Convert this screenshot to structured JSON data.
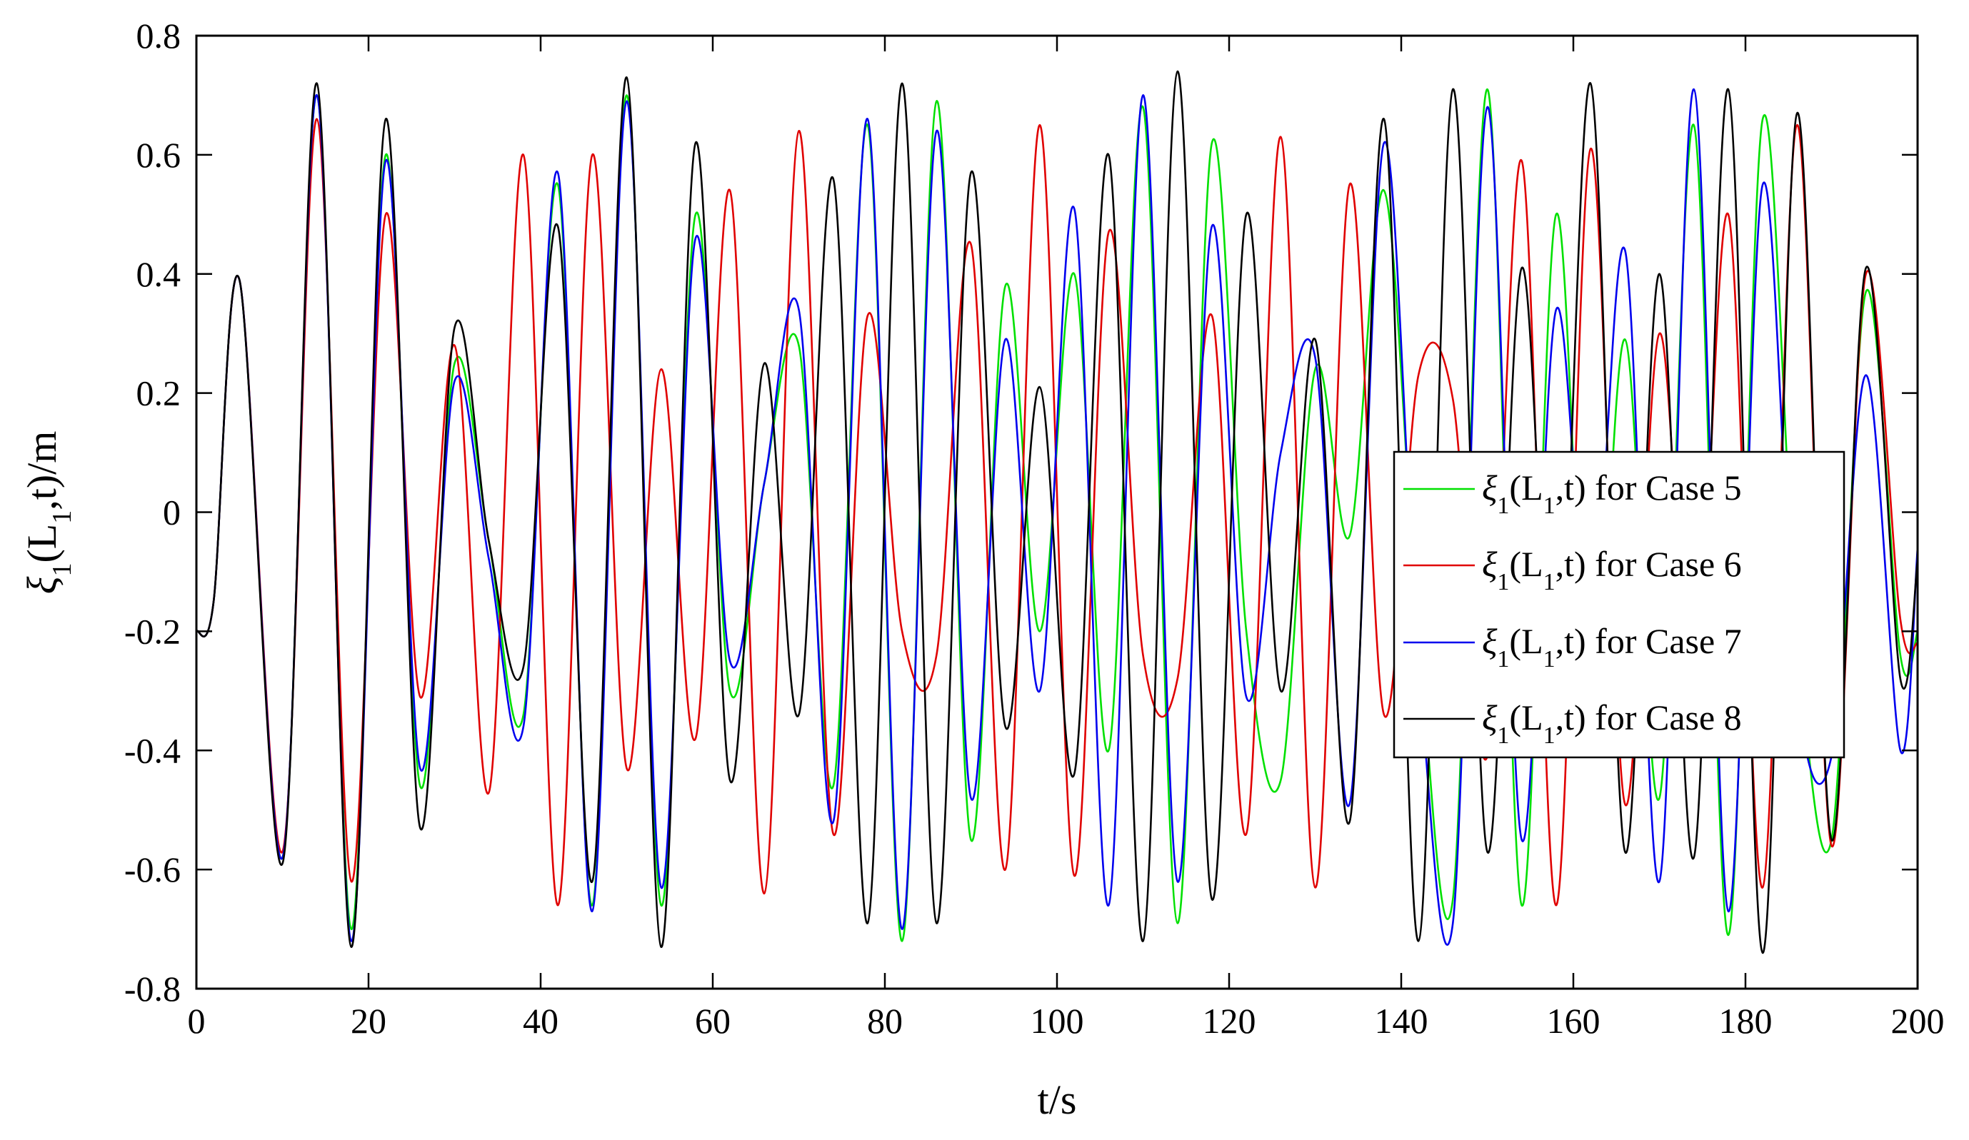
{
  "chart_data": {
    "type": "line",
    "title": "",
    "xlabel": "t/s",
    "ylabel": {
      "main": "ξ",
      "sub1": "1",
      "mid": "(L",
      "sub2": "1",
      "tail": ",t)/m"
    },
    "xlim": [
      0,
      200
    ],
    "ylim": [
      -0.8,
      0.8
    ],
    "x_ticks": [
      "0",
      "20",
      "40",
      "60",
      "80",
      "100",
      "120",
      "140",
      "160",
      "180",
      "200"
    ],
    "y_ticks": [
      "-0.8",
      "-0.6",
      "-0.4",
      "-0.2",
      "0",
      "0.2",
      "0.4",
      "0.6",
      "0.8"
    ],
    "grid": false,
    "legend_placement": "right",
    "x": [
      0,
      2,
      5,
      10,
      14,
      18,
      22,
      26,
      30,
      34,
      38,
      42,
      46,
      50,
      54,
      58,
      62,
      66,
      70,
      74,
      78,
      82,
      86,
      90,
      94,
      98,
      102,
      106,
      110,
      114,
      118,
      122,
      126,
      130,
      134,
      138,
      142,
      146,
      150,
      154,
      158,
      162,
      166,
      170,
      174,
      178,
      182,
      186,
      190,
      194,
      198,
      200
    ],
    "series": [
      {
        "name": "for Case 5",
        "color": "#00e000",
        "values": [
          -0.2,
          -0.15,
          0.39,
          -0.58,
          0.7,
          -0.7,
          0.6,
          -0.46,
          0.25,
          -0.05,
          -0.34,
          0.55,
          -0.66,
          0.7,
          -0.66,
          0.5,
          -0.3,
          0.05,
          0.28,
          -0.46,
          0.65,
          -0.72,
          0.69,
          -0.55,
          0.38,
          -0.2,
          0.4,
          -0.4,
          0.68,
          -0.69,
          0.62,
          -0.2,
          -0.45,
          0.24,
          -0.04,
          0.54,
          -0.2,
          -0.65,
          0.71,
          -0.66,
          0.5,
          -0.4,
          0.29,
          -0.48,
          0.65,
          -0.71,
          0.66,
          -0.2,
          -0.55,
          0.37,
          -0.24,
          -0.2
        ]
      },
      {
        "name": "for Case 6",
        "color": "#e00000",
        "values": [
          -0.2,
          -0.15,
          0.39,
          -0.57,
          0.66,
          -0.62,
          0.5,
          -0.31,
          0.28,
          -0.47,
          0.6,
          -0.66,
          0.6,
          -0.43,
          0.24,
          -0.38,
          0.54,
          -0.64,
          0.64,
          -0.54,
          0.33,
          -0.2,
          -0.24,
          0.45,
          -0.6,
          0.65,
          -0.61,
          0.47,
          -0.24,
          -0.28,
          0.33,
          -0.54,
          0.63,
          -0.63,
          0.55,
          -0.34,
          0.23,
          0.19,
          -0.41,
          0.59,
          -0.66,
          0.61,
          -0.49,
          0.3,
          -0.36,
          0.5,
          -0.63,
          0.65,
          -0.56,
          0.4,
          -0.18,
          -0.22
        ]
      },
      {
        "name": "for Case 7",
        "color": "#0000ee",
        "values": [
          -0.2,
          -0.15,
          0.39,
          -0.58,
          0.7,
          -0.72,
          0.59,
          -0.43,
          0.22,
          -0.08,
          -0.36,
          0.57,
          -0.67,
          0.69,
          -0.63,
          0.46,
          -0.25,
          0.05,
          0.34,
          -0.52,
          0.66,
          -0.7,
          0.64,
          -0.48,
          0.29,
          -0.3,
          0.51,
          -0.66,
          0.7,
          -0.62,
          0.48,
          -0.31,
          0.1,
          0.26,
          -0.49,
          0.62,
          -0.25,
          -0.69,
          0.68,
          -0.55,
          0.34,
          -0.22,
          0.44,
          -0.62,
          0.71,
          -0.67,
          0.55,
          -0.3,
          -0.41,
          0.23,
          -0.4,
          -0.06
        ]
      },
      {
        "name": "for Case 8",
        "color": "#000000",
        "values": [
          -0.2,
          -0.15,
          0.39,
          -0.59,
          0.72,
          -0.73,
          0.66,
          -0.53,
          0.31,
          -0.05,
          -0.26,
          0.48,
          -0.62,
          0.73,
          -0.73,
          0.62,
          -0.45,
          0.25,
          -0.34,
          0.56,
          -0.69,
          0.72,
          -0.69,
          0.57,
          -0.36,
          0.21,
          -0.44,
          0.6,
          -0.72,
          0.74,
          -0.65,
          0.5,
          -0.3,
          0.29,
          -0.52,
          0.66,
          -0.72,
          0.71,
          -0.57,
          0.41,
          -0.38,
          0.72,
          -0.57,
          0.4,
          -0.58,
          0.71,
          -0.74,
          0.67,
          -0.55,
          0.41,
          -0.28,
          -0.08
        ]
      }
    ],
    "legend_entries": [
      {
        "symbol": "ξ",
        "sub1": "1",
        "mid": "(L",
        "sub2": "1",
        "tail": ",t) for Case 5",
        "color": "#00e000"
      },
      {
        "symbol": "ξ",
        "sub1": "1",
        "mid": "(L",
        "sub2": "1",
        "tail": ",t) for Case 6",
        "color": "#e00000"
      },
      {
        "symbol": "ξ",
        "sub1": "1",
        "mid": "(L",
        "sub2": "1",
        "tail": ",t) for Case 7",
        "color": "#0000ee"
      },
      {
        "symbol": "ξ",
        "sub1": "1",
        "mid": "(L",
        "sub2": "1",
        "tail": ",t) for Case 8",
        "color": "#000000"
      }
    ]
  }
}
